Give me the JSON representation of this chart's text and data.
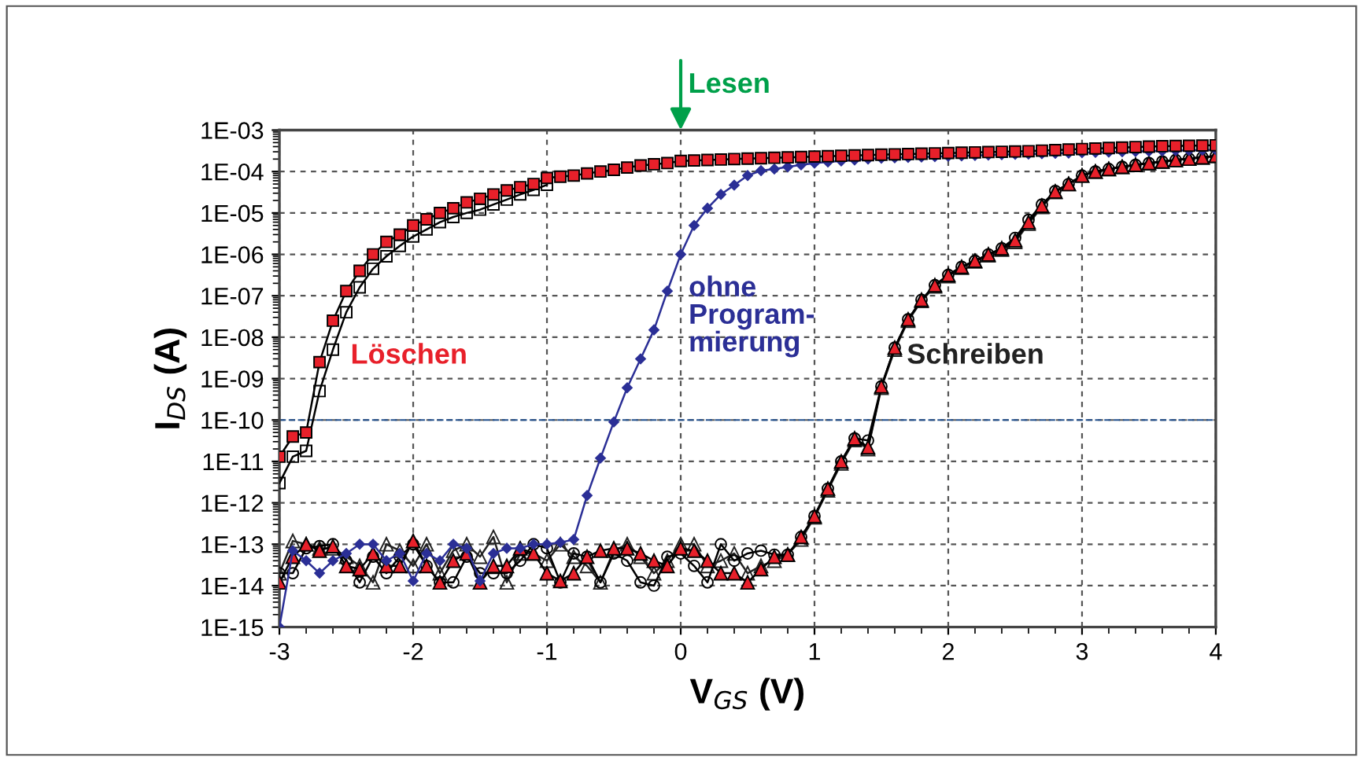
{
  "chart_data": {
    "type": "line",
    "xlabel": "V$_{GS}$ (V)",
    "ylabel": "I$_{DS}$ (A)",
    "log": "y",
    "grid": true,
    "legend": false,
    "xlim": [
      -3,
      4
    ],
    "xticks": [
      -3,
      -2,
      -1,
      0,
      1,
      2,
      3,
      4
    ],
    "ylim": [
      1e-15,
      0.001
    ],
    "yticks": [
      {
        "value": 1e-15,
        "label": "1E-15"
      },
      {
        "value": 1e-14,
        "label": "1E-14"
      },
      {
        "value": 1e-13,
        "label": "1E-13"
      },
      {
        "value": 1e-12,
        "label": "1E-12"
      },
      {
        "value": 1e-11,
        "label": "1E-11"
      },
      {
        "value": 1e-10,
        "label": "1E-10"
      },
      {
        "value": 1e-09,
        "label": "1E-09"
      },
      {
        "value": 1e-08,
        "label": "1E-08"
      },
      {
        "value": 1e-07,
        "label": "1E-07"
      },
      {
        "value": 1e-06,
        "label": "1E-06"
      },
      {
        "value": 1e-05,
        "label": "1E-05"
      },
      {
        "value": 0.0001,
        "label": "1E-04"
      },
      {
        "value": 0.001,
        "label": "1E-03"
      }
    ],
    "ref_lines": [
      {
        "axis": "y",
        "value": 1e-10,
        "color": "#1f4e8c",
        "line_style": "dashed"
      }
    ],
    "annotations": [
      "Lesen"
    ],
    "x": [
      -3.0,
      -2.9,
      -2.8,
      -2.7,
      -2.6,
      -2.5,
      -2.4,
      -2.3,
      -2.2,
      -2.1,
      -2.0,
      -1.9,
      -1.8,
      -1.7,
      -1.6,
      -1.5,
      -1.4,
      -1.3,
      -1.2,
      -1.1,
      -1.0,
      -0.9,
      -0.8,
      -0.7,
      -0.6,
      -0.5,
      -0.4,
      -0.3,
      -0.2,
      -0.1,
      0.0,
      0.1,
      0.2,
      0.3,
      0.4,
      0.5,
      0.6,
      0.7,
      0.8,
      0.9,
      1.0,
      1.1,
      1.2,
      1.3,
      1.4,
      1.5,
      1.6,
      1.7,
      1.8,
      1.9,
      2.0,
      2.1,
      2.2,
      2.3,
      2.4,
      2.5,
      2.6,
      2.7,
      2.8,
      2.9,
      3.0,
      3.1,
      3.2,
      3.3,
      3.4,
      3.5,
      3.6,
      3.7,
      3.8,
      3.9,
      4.0
    ],
    "series": [
      {
        "color": "#222222",
        "marker": "triangle",
        "values": [
          2e-14,
          1.2e-13,
          1e-13,
          8e-14,
          8e-14,
          5e-14,
          3e-14,
          1.2e-14,
          1e-13,
          7e-14,
          3e-14,
          1e-13,
          2e-14,
          7e-14,
          1e-13,
          5e-14,
          1.5e-13,
          1.2e-14,
          6e-14,
          6e-14,
          4e-14,
          1e-13,
          5e-14,
          3e-14,
          1.2e-14,
          7e-14,
          1e-13,
          5e-14,
          2e-14,
          4e-14,
          1e-13,
          1e-13,
          3e-14,
          4e-14,
          6e-14,
          2e-14,
          3e-14,
          4e-14,
          5.6e-14,
          1.3e-13,
          4.5e-13,
          2e-12,
          9e-12,
          3.3e-11,
          2e-11,
          6e-10,
          5e-09,
          2.5e-08,
          7.5e-08,
          1.7e-07,
          3e-07,
          4.8e-07,
          6.8e-07,
          9.5e-07,
          1.3e-06,
          2e-06,
          5.5e-06,
          1.4e-05,
          3.2e-05,
          5e-05,
          8e-05,
          0.0001,
          0.000115,
          0.00013,
          0.000145,
          0.00016,
          0.000175,
          0.00019,
          0.000205,
          0.00022,
          0.00024
        ]
      },
      {
        "color": "#000000",
        "marker": "circle",
        "values": [
          2e-14,
          2e-14,
          8e-14,
          9e-14,
          1e-13,
          4e-14,
          1.2e-14,
          5e-14,
          2e-14,
          5e-14,
          1e-13,
          3e-14,
          1.2e-14,
          1.2e-14,
          5e-14,
          2e-14,
          2e-14,
          2e-14,
          4e-14,
          1e-13,
          8e-14,
          1.2e-14,
          6e-14,
          5e-14,
          1.2e-14,
          6e-14,
          4e-14,
          1.2e-14,
          1e-14,
          5e-14,
          6e-14,
          3e-14,
          1.2e-14,
          1e-13,
          4e-14,
          6e-14,
          7e-14,
          5.6e-14,
          5.6e-14,
          1.5e-13,
          4.8e-13,
          2.2e-12,
          1e-11,
          3.6e-11,
          3.2e-11,
          6.5e-10,
          5.6e-09,
          2.7e-08,
          8e-08,
          1.8e-07,
          3.2e-07,
          5e-07,
          7e-07,
          1e-06,
          1.4e-06,
          2.5e-06,
          6.8e-06,
          1.6e-05,
          3.4e-05,
          5e-05,
          8e-05,
          0.0001,
          0.000115,
          0.00013,
          0.000145,
          0.00016,
          0.000175,
          0.00019,
          0.000205,
          0.00022,
          0.00024
        ]
      },
      {
        "name": "Schreiben",
        "color": "#e8202a",
        "marker": "triangle",
        "values": [
          1.2e-14,
          5e-14,
          1e-13,
          7e-14,
          9e-14,
          3e-14,
          2.5e-14,
          6e-14,
          3e-14,
          3e-14,
          1.2e-13,
          3e-14,
          1.2e-14,
          4e-14,
          6e-14,
          1.2e-14,
          3e-14,
          3e-14,
          8e-14,
          6e-14,
          2e-14,
          1.3e-14,
          2e-14,
          5e-14,
          7e-14,
          8e-14,
          8e-14,
          6e-14,
          4e-14,
          3e-14,
          8e-14,
          7e-14,
          4e-14,
          2e-14,
          2e-14,
          1.2e-14,
          2.5e-14,
          5e-14,
          5.6e-14,
          1.5e-13,
          4.8e-13,
          2.2e-12,
          1e-11,
          3.6e-11,
          2.2e-11,
          6.5e-10,
          5.6e-09,
          2.7e-08,
          8e-08,
          1.8e-07,
          3.2e-07,
          5e-07,
          7e-07,
          1e-06,
          1.4e-06,
          2.2e-06,
          6e-06,
          1.5e-05,
          3.3e-05,
          5e-05,
          8e-05,
          0.0001,
          0.000115,
          0.00013,
          0.000145,
          0.00016,
          0.000175,
          0.00019,
          0.000205,
          0.00022,
          0.00024
        ]
      },
      {
        "name": "ohne\nProgram-\nmierung",
        "color": "#2b2f96",
        "marker": "diamond",
        "values": [
          1e-15,
          7e-14,
          4e-14,
          2e-14,
          4e-14,
          6e-14,
          1e-13,
          1e-13,
          4e-14,
          6e-14,
          1.3e-14,
          6e-14,
          4e-14,
          1e-13,
          8e-14,
          1.3e-14,
          6e-14,
          8e-14,
          8e-14,
          1e-13,
          1e-13,
          1.1e-13,
          1.3e-13,
          1.5e-12,
          1.2e-11,
          9e-11,
          6e-10,
          3e-09,
          1.5e-08,
          1.3e-07,
          1e-06,
          5e-06,
          1.3e-05,
          2.8e-05,
          4.7e-05,
          8e-05,
          0.000105,
          0.000115,
          0.00013,
          0.000145,
          0.00016,
          0.00017,
          0.00018,
          0.00019,
          0.0002,
          0.00021,
          0.000215,
          0.00022,
          0.000225,
          0.00023,
          0.000235,
          0.00024,
          0.000245,
          0.00025,
          0.000255,
          0.00026,
          0.000265,
          0.00027,
          0.000275,
          0.00028,
          0.000285,
          0.00029,
          0.000295,
          0.0003,
          0.000305,
          0.00031,
          0.000315,
          0.00032,
          0.000325,
          0.00033,
          0.000335
        ]
      },
      {
        "color": "#000000",
        "marker": "square",
        "x": [
          -3.0,
          -2.9,
          -2.8,
          -2.7,
          -2.6,
          -2.5,
          -2.4,
          -2.3,
          -2.2,
          -2.1,
          -2.0,
          -1.9,
          -1.8,
          -1.7,
          -1.6,
          -1.5,
          -1.4,
          -1.3,
          -1.2,
          -1.1,
          -1.0
        ],
        "values": [
          3e-12,
          1.3e-11,
          1.8e-11,
          5e-10,
          5e-09,
          4e-08,
          1.6e-07,
          4.5e-07,
          9e-07,
          1.6e-06,
          2.7e-06,
          4e-06,
          6e-06,
          8e-06,
          1e-05,
          1.2e-05,
          1.6e-05,
          2.1e-05,
          2.8e-05,
          3.6e-05,
          4.8e-05
        ]
      },
      {
        "name": "Löschen",
        "color": "#e8202a",
        "marker": "square",
        "values": [
          1.3e-11,
          4e-11,
          5e-11,
          2.5e-09,
          2.5e-08,
          1.3e-07,
          4e-07,
          1e-06,
          2e-06,
          3e-06,
          5e-06,
          7e-06,
          1e-05,
          1.3e-05,
          1.8e-05,
          2.2e-05,
          2.8e-05,
          3.5e-05,
          4.2e-05,
          5e-05,
          7e-05,
          7.5e-05,
          8e-05,
          9e-05,
          0.0001,
          0.00011,
          0.000125,
          0.00014,
          0.00015,
          0.00016,
          0.00018,
          0.000185,
          0.00019,
          0.000195,
          0.0002,
          0.000205,
          0.00021,
          0.000215,
          0.00022,
          0.000225,
          0.00023,
          0.000235,
          0.00024,
          0.000245,
          0.00025,
          0.000255,
          0.00026,
          0.000265,
          0.00027,
          0.000275,
          0.00028,
          0.000285,
          0.00029,
          0.000295,
          0.0003,
          0.000305,
          0.00031,
          0.00032,
          0.00033,
          0.00034,
          0.00035,
          0.00036,
          0.00037,
          0.00038,
          0.00039,
          0.0004,
          0.00041,
          0.000415,
          0.00042,
          0.000425,
          0.00043
        ]
      }
    ]
  }
}
